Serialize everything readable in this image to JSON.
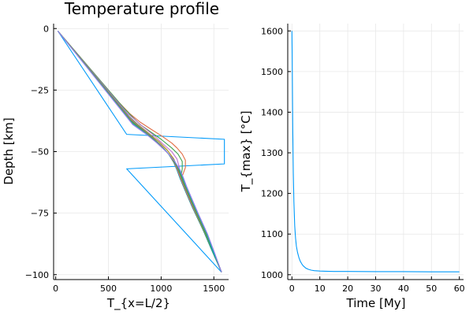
{
  "chart_data": [
    {
      "type": "line",
      "title": "Temperature profile",
      "xlabel": "T_{x=L/2}",
      "ylabel": "Depth [km]",
      "xlim": [
        -20,
        1640
      ],
      "ylim": [
        -102,
        2
      ],
      "xticks": [
        "0",
        "500",
        "1000",
        "1500"
      ],
      "xtick_values": [
        0,
        500,
        1000,
        1500
      ],
      "yticks": [
        "0",
        "−25",
        "−50",
        "−75",
        "−100"
      ],
      "ytick_values": [
        0,
        -25,
        -50,
        -75,
        -100
      ],
      "grid": true,
      "legend": "none",
      "series": [
        {
          "color": "#009AFA",
          "x": [
            20,
            673,
            1600,
            1600,
            673,
            1573
          ],
          "y": [
            -1,
            -43,
            -45,
            -55,
            -57,
            -99
          ]
        },
        {
          "color": "#E26F46",
          "x": [
            20,
            600,
            700,
            800,
            900,
            1000,
            1100,
            1150,
            1200,
            1230,
            1230,
            1200,
            1220,
            1300,
            1400,
            1500,
            1573
          ],
          "y": [
            -1,
            -30,
            -34.5,
            -38,
            -40.8,
            -43.5,
            -46.5,
            -48.5,
            -51,
            -53.5,
            -56.5,
            -60,
            -65,
            -73,
            -82,
            -91,
            -99
          ]
        },
        {
          "color": "#3EA44E",
          "x": [
            20,
            650,
            730,
            800,
            900,
            1000,
            1100,
            1160,
            1200,
            1200,
            1190,
            1220,
            1300,
            1400,
            1500,
            1573
          ],
          "y": [
            -1,
            -32.5,
            -36,
            -39,
            -42,
            -45,
            -48.5,
            -51,
            -54,
            -57,
            -60,
            -65,
            -73,
            -82,
            -91,
            -99
          ]
        },
        {
          "color": "#C270D2",
          "x": [
            20,
            680,
            750,
            830,
            920,
            1020,
            1100,
            1150,
            1170,
            1180,
            1200,
            1280,
            1380,
            1480,
            1573
          ],
          "y": [
            -1,
            -34.5,
            -37,
            -40,
            -43,
            -47,
            -50,
            -53,
            -56,
            -59,
            -63,
            -71,
            -80,
            -90,
            -99
          ]
        },
        {
          "color": "#AC8E18",
          "x": [
            20,
            690,
            780,
            880,
            980,
            1060,
            1120,
            1150,
            1170,
            1200,
            1280,
            1380,
            1480,
            1573
          ],
          "y": [
            -1,
            -35.5,
            -39,
            -42.5,
            -46,
            -49.5,
            -53,
            -56,
            -59,
            -63,
            -71,
            -80,
            -90,
            -99
          ]
        },
        {
          "color": "#00A9AD",
          "x": [
            20,
            700,
            800,
            900,
            1000,
            1070,
            1120,
            1150,
            1180,
            1210,
            1290,
            1390,
            1480,
            1573
          ],
          "y": [
            -1,
            -36,
            -40,
            -43.5,
            -47.5,
            -51,
            -54.5,
            -57.5,
            -61,
            -64,
            -72,
            -81,
            -90,
            -99
          ]
        },
        {
          "color": "#ED5D92",
          "x": [
            20,
            705,
            810,
            910,
            1010,
            1080,
            1130,
            1160,
            1190,
            1220,
            1300,
            1400,
            1490,
            1573
          ],
          "y": [
            -1,
            -36.5,
            -40.5,
            -44,
            -48,
            -51.5,
            -55,
            -58,
            -61.5,
            -64.5,
            -72.5,
            -81.5,
            -90.5,
            -99
          ]
        },
        {
          "color": "#C68225",
          "x": [
            20,
            710,
            820,
            920,
            1020,
            1090,
            1140,
            1170,
            1200,
            1230,
            1310,
            1400,
            1490,
            1573
          ],
          "y": [
            -1,
            -37,
            -41,
            -44.5,
            -48.5,
            -52,
            -55.5,
            -58.5,
            -62,
            -65,
            -73,
            -81.5,
            -90.5,
            -99
          ]
        },
        {
          "color": "#00A98D",
          "x": [
            20,
            715,
            830,
            930,
            1030,
            1100,
            1150,
            1180,
            1210,
            1240,
            1320,
            1410,
            1490,
            1573
          ],
          "y": [
            -1,
            -37.5,
            -41.5,
            -45,
            -49,
            -52.5,
            -56,
            -59,
            -62.5,
            -65.5,
            -73.5,
            -82,
            -90.5,
            -99
          ]
        },
        {
          "color": "#8E971D",
          "x": [
            20,
            720,
            840,
            940,
            1040,
            1110,
            1160,
            1190,
            1220,
            1250,
            1330,
            1420,
            1500,
            1573
          ],
          "y": [
            -1,
            -38,
            -42,
            -45.5,
            -49.5,
            -53,
            -56.5,
            -59.5,
            -63,
            -66,
            -74,
            -82.5,
            -91,
            -99
          ]
        },
        {
          "color": "#00A9CD",
          "x": [
            20,
            725,
            850,
            950,
            1050,
            1120,
            1170,
            1200,
            1230,
            1260,
            1340,
            1430,
            1500,
            1573
          ],
          "y": [
            -1,
            -38.5,
            -42.5,
            -46,
            -50,
            -53.5,
            -57,
            -60,
            -63.5,
            -66.5,
            -74.5,
            -83,
            -91,
            -99
          ]
        },
        {
          "color": "#9B7FE8",
          "x": [
            20,
            730,
            860,
            960,
            1060,
            1130,
            1180,
            1210,
            1240,
            1270,
            1350,
            1440,
            1510,
            1573
          ],
          "y": [
            -1,
            -39,
            -43,
            -46.5,
            -50.5,
            -54,
            -57.5,
            -60.5,
            -64,
            -67,
            -75,
            -83.5,
            -91.5,
            -99
          ]
        }
      ]
    },
    {
      "type": "line",
      "title": "",
      "xlabel": "Time [My]",
      "ylabel": "T_{max} [°C]",
      "xlim": [
        -1.5,
        61.5
      ],
      "ylim": [
        988,
        1618
      ],
      "xticks": [
        "0",
        "10",
        "20",
        "30",
        "40",
        "50",
        "60"
      ],
      "xtick_values": [
        0,
        10,
        20,
        30,
        40,
        50,
        60
      ],
      "yticks": [
        "1000",
        "1100",
        "1200",
        "1300",
        "1400",
        "1500",
        "1600"
      ],
      "ytick_values": [
        1000,
        1100,
        1200,
        1300,
        1400,
        1500,
        1600
      ],
      "grid": true,
      "legend": "none",
      "series": [
        {
          "color": "#009AFA",
          "x": [
            0,
            0.1,
            0.2,
            0.3,
            0.5,
            0.7,
            1.0,
            1.3,
            1.6,
            2.0,
            2.5,
            3.0,
            3.5,
            4.0,
            5.0,
            6.0,
            7.0,
            8.0,
            10.0,
            12.0,
            15.0,
            20.0,
            30.0,
            40.0,
            50.0,
            60.0
          ],
          "y": [
            1600,
            1530,
            1440,
            1360,
            1250,
            1180,
            1120,
            1090,
            1070,
            1055,
            1042,
            1033,
            1027,
            1022,
            1016,
            1013,
            1011,
            1010,
            1009,
            1008.5,
            1008,
            1008,
            1007.5,
            1007.5,
            1007,
            1007
          ]
        }
      ]
    }
  ]
}
